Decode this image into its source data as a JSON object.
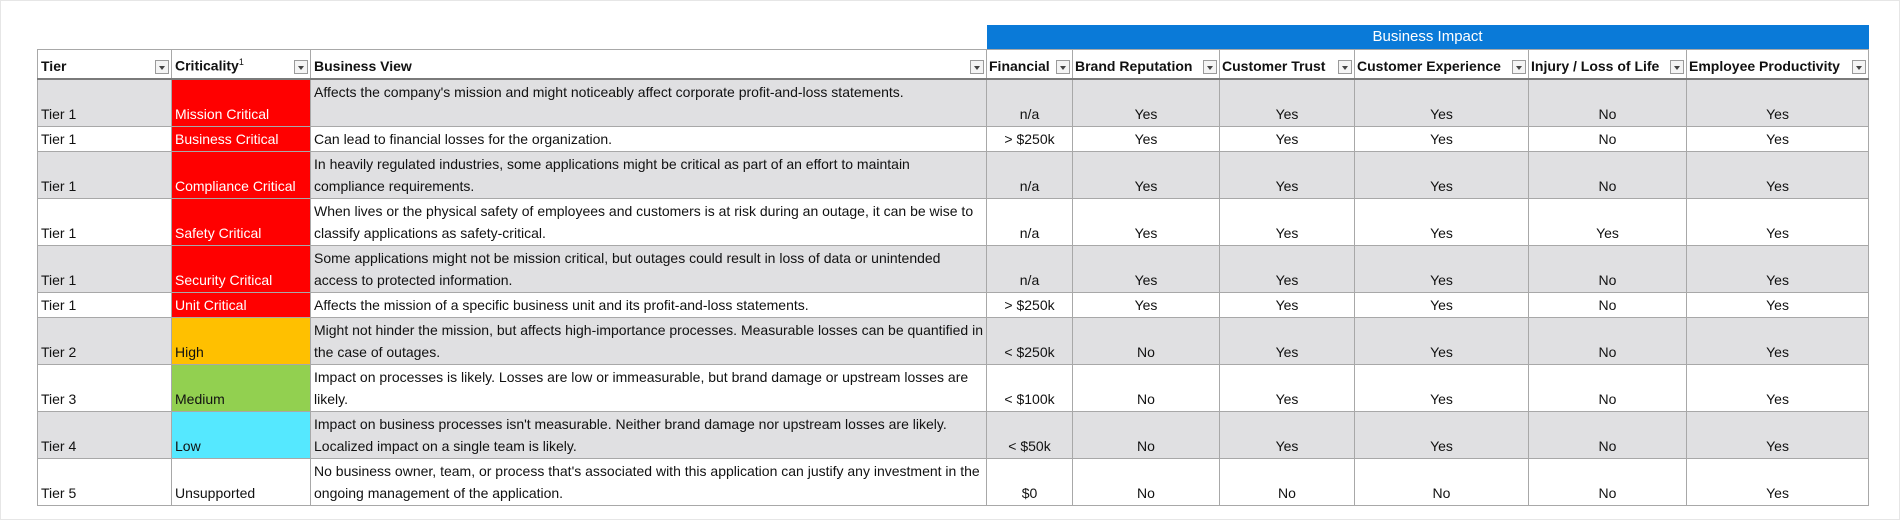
{
  "banner": "Business Impact",
  "columns": [
    "Tier",
    "Criticality",
    "Business View",
    "Financial",
    "Brand Reputation",
    "Customer Trust",
    "Customer Experience",
    "Injury / Loss of Life",
    "Employee Productivity"
  ],
  "criticality_note": "1",
  "criticality_colors": [
    "#ff0000",
    "#ff0000",
    "#ff0000",
    "#ff0000",
    "#ff0000",
    "#ff0000",
    "#ffc000",
    "#92d050",
    "#55e8ff",
    "#ffffff"
  ],
  "rows": [
    [
      "Tier 1",
      "Mission Critical",
      "Affects the company's mission and might noticeably affect corporate profit-and-loss statements.",
      "n/a",
      "Yes",
      "Yes",
      "Yes",
      "No",
      "Yes"
    ],
    [
      "Tier 1",
      "Business Critical",
      "Can lead to financial losses for the organization.",
      "> $250k",
      "Yes",
      "Yes",
      "Yes",
      "No",
      "Yes"
    ],
    [
      "Tier 1",
      "Compliance Critical",
      "In heavily regulated industries, some applications might be critical as part of an effort to maintain compliance requirements.",
      "n/a",
      "Yes",
      "Yes",
      "Yes",
      "No",
      "Yes"
    ],
    [
      "Tier 1",
      "Safety Critical",
      "When lives or the physical safety of employees and customers is at risk during an outage, it can be wise to classify applications as safety-critical.",
      "n/a",
      "Yes",
      "Yes",
      "Yes",
      "Yes",
      "Yes"
    ],
    [
      "Tier 1",
      "Security Critical",
      "Some applications might not be mission critical, but outages could result in loss of data or unintended access to protected information.",
      "n/a",
      "Yes",
      "Yes",
      "Yes",
      "No",
      "Yes"
    ],
    [
      "Tier 1",
      "Unit Critical",
      "Affects the mission of a specific business unit and its profit-and-loss statements.",
      "> $250k",
      "Yes",
      "Yes",
      "Yes",
      "No",
      "Yes"
    ],
    [
      "Tier 2",
      "High",
      "Might not hinder the mission, but affects high-importance processes. Measurable losses can be quantified in the case of outages.",
      "< $250k",
      "No",
      "Yes",
      "Yes",
      "No",
      "Yes"
    ],
    [
      "Tier 3",
      "Medium",
      "Impact on processes is likely. Losses are low or immeasurable, but brand damage or upstream losses are likely.",
      "< $100k",
      "No",
      "Yes",
      "Yes",
      "No",
      "Yes"
    ],
    [
      "Tier 4",
      "Low",
      "Impact on business processes isn't measurable. Neither brand damage nor upstream losses are likely. Localized impact on a single team is likely.",
      "< $50k",
      "No",
      "Yes",
      "Yes",
      "No",
      "Yes"
    ],
    [
      "Tier 5",
      "Unsupported",
      "No business owner, team, or process that's associated with this application can justify any investment in the ongoing management of the application.",
      "$0",
      "No",
      "No",
      "No",
      "No",
      "Yes"
    ]
  ]
}
